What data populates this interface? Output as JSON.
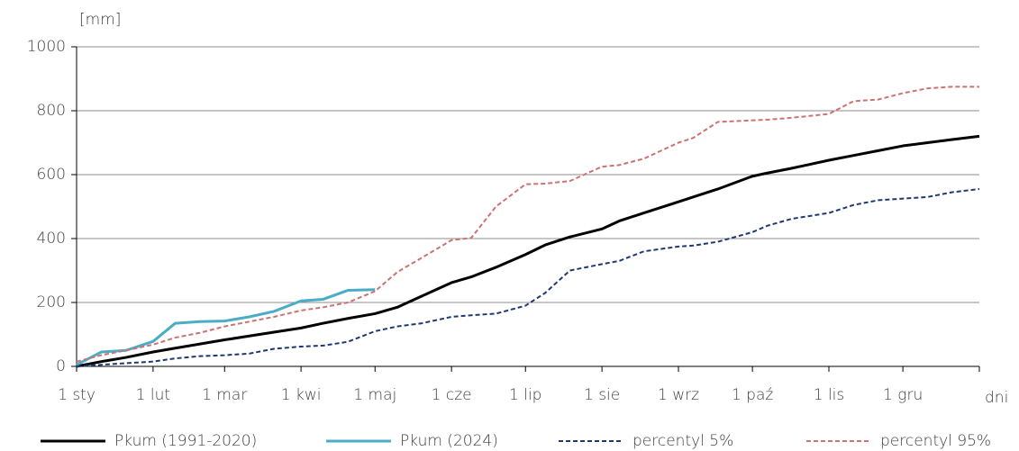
{
  "chart_data": {
    "type": "line",
    "y_label": "[mm]",
    "x_label": "dni",
    "x": [
      0,
      10,
      20,
      31,
      40,
      50,
      60,
      70,
      80,
      91,
      100,
      110,
      121,
      130,
      140,
      152,
      160,
      170,
      182,
      190,
      200,
      213,
      220,
      230,
      244,
      250,
      260,
      274,
      280,
      290,
      305,
      315,
      325,
      335,
      345,
      355,
      366
    ],
    "xlim": [
      0,
      366
    ],
    "xticks": [
      {
        "value": 0,
        "label": "1 sty"
      },
      {
        "value": 31,
        "label": "1 lut"
      },
      {
        "value": 60,
        "label": "1 mar"
      },
      {
        "value": 91,
        "label": "1 kwi"
      },
      {
        "value": 121,
        "label": "1 maj"
      },
      {
        "value": 152,
        "label": "1 cze"
      },
      {
        "value": 182,
        "label": "1 lip"
      },
      {
        "value": 213,
        "label": "1 sie"
      },
      {
        "value": 244,
        "label": "1 wrz"
      },
      {
        "value": 274,
        "label": "1 paź"
      },
      {
        "value": 305,
        "label": "1 lis"
      },
      {
        "value": 335,
        "label": "1 gru"
      }
    ],
    "ylim": [
      0,
      1000
    ],
    "yticks": [
      0,
      200,
      400,
      600,
      800,
      1000
    ],
    "grid": true,
    "series": [
      {
        "name": "Pkum (1991-2020)",
        "color": "#000000",
        "dash": false,
        "values": [
          0,
          15,
          28,
          45,
          57,
          70,
          83,
          95,
          107,
          120,
          135,
          150,
          165,
          185,
          220,
          262,
          280,
          310,
          350,
          380,
          405,
          430,
          455,
          480,
          515,
          530,
          555,
          595,
          605,
          620,
          645,
          660,
          675,
          690,
          700,
          710,
          720
        ]
      },
      {
        "name": "Pkum (2024)",
        "color": "#4bacc6",
        "dash": false,
        "values": [
          5,
          45,
          50,
          78,
          135,
          140,
          142,
          155,
          172,
          205,
          210,
          238,
          240,
          null,
          null,
          null,
          null,
          null,
          null,
          null,
          null,
          null,
          null,
          null,
          null,
          null,
          null,
          null,
          null,
          null,
          null,
          null,
          null,
          null,
          null,
          null,
          null
        ]
      },
      {
        "name": "percentyl 5%",
        "color": "#1f3a73",
        "dash": true,
        "values": [
          0,
          5,
          10,
          15,
          25,
          32,
          35,
          40,
          55,
          62,
          65,
          77,
          110,
          125,
          135,
          155,
          160,
          165,
          190,
          230,
          300,
          320,
          330,
          360,
          375,
          378,
          390,
          420,
          440,
          462,
          480,
          505,
          520,
          525,
          530,
          545,
          555
        ]
      },
      {
        "name": "percentyl 95%",
        "color": "#cd7272",
        "dash": true,
        "values": [
          15,
          35,
          50,
          68,
          90,
          105,
          125,
          140,
          155,
          175,
          185,
          200,
          235,
          295,
          340,
          395,
          402,
          500,
          570,
          572,
          580,
          625,
          630,
          650,
          700,
          715,
          765,
          770,
          772,
          778,
          790,
          830,
          835,
          855,
          870,
          875,
          875
        ]
      }
    ]
  }
}
